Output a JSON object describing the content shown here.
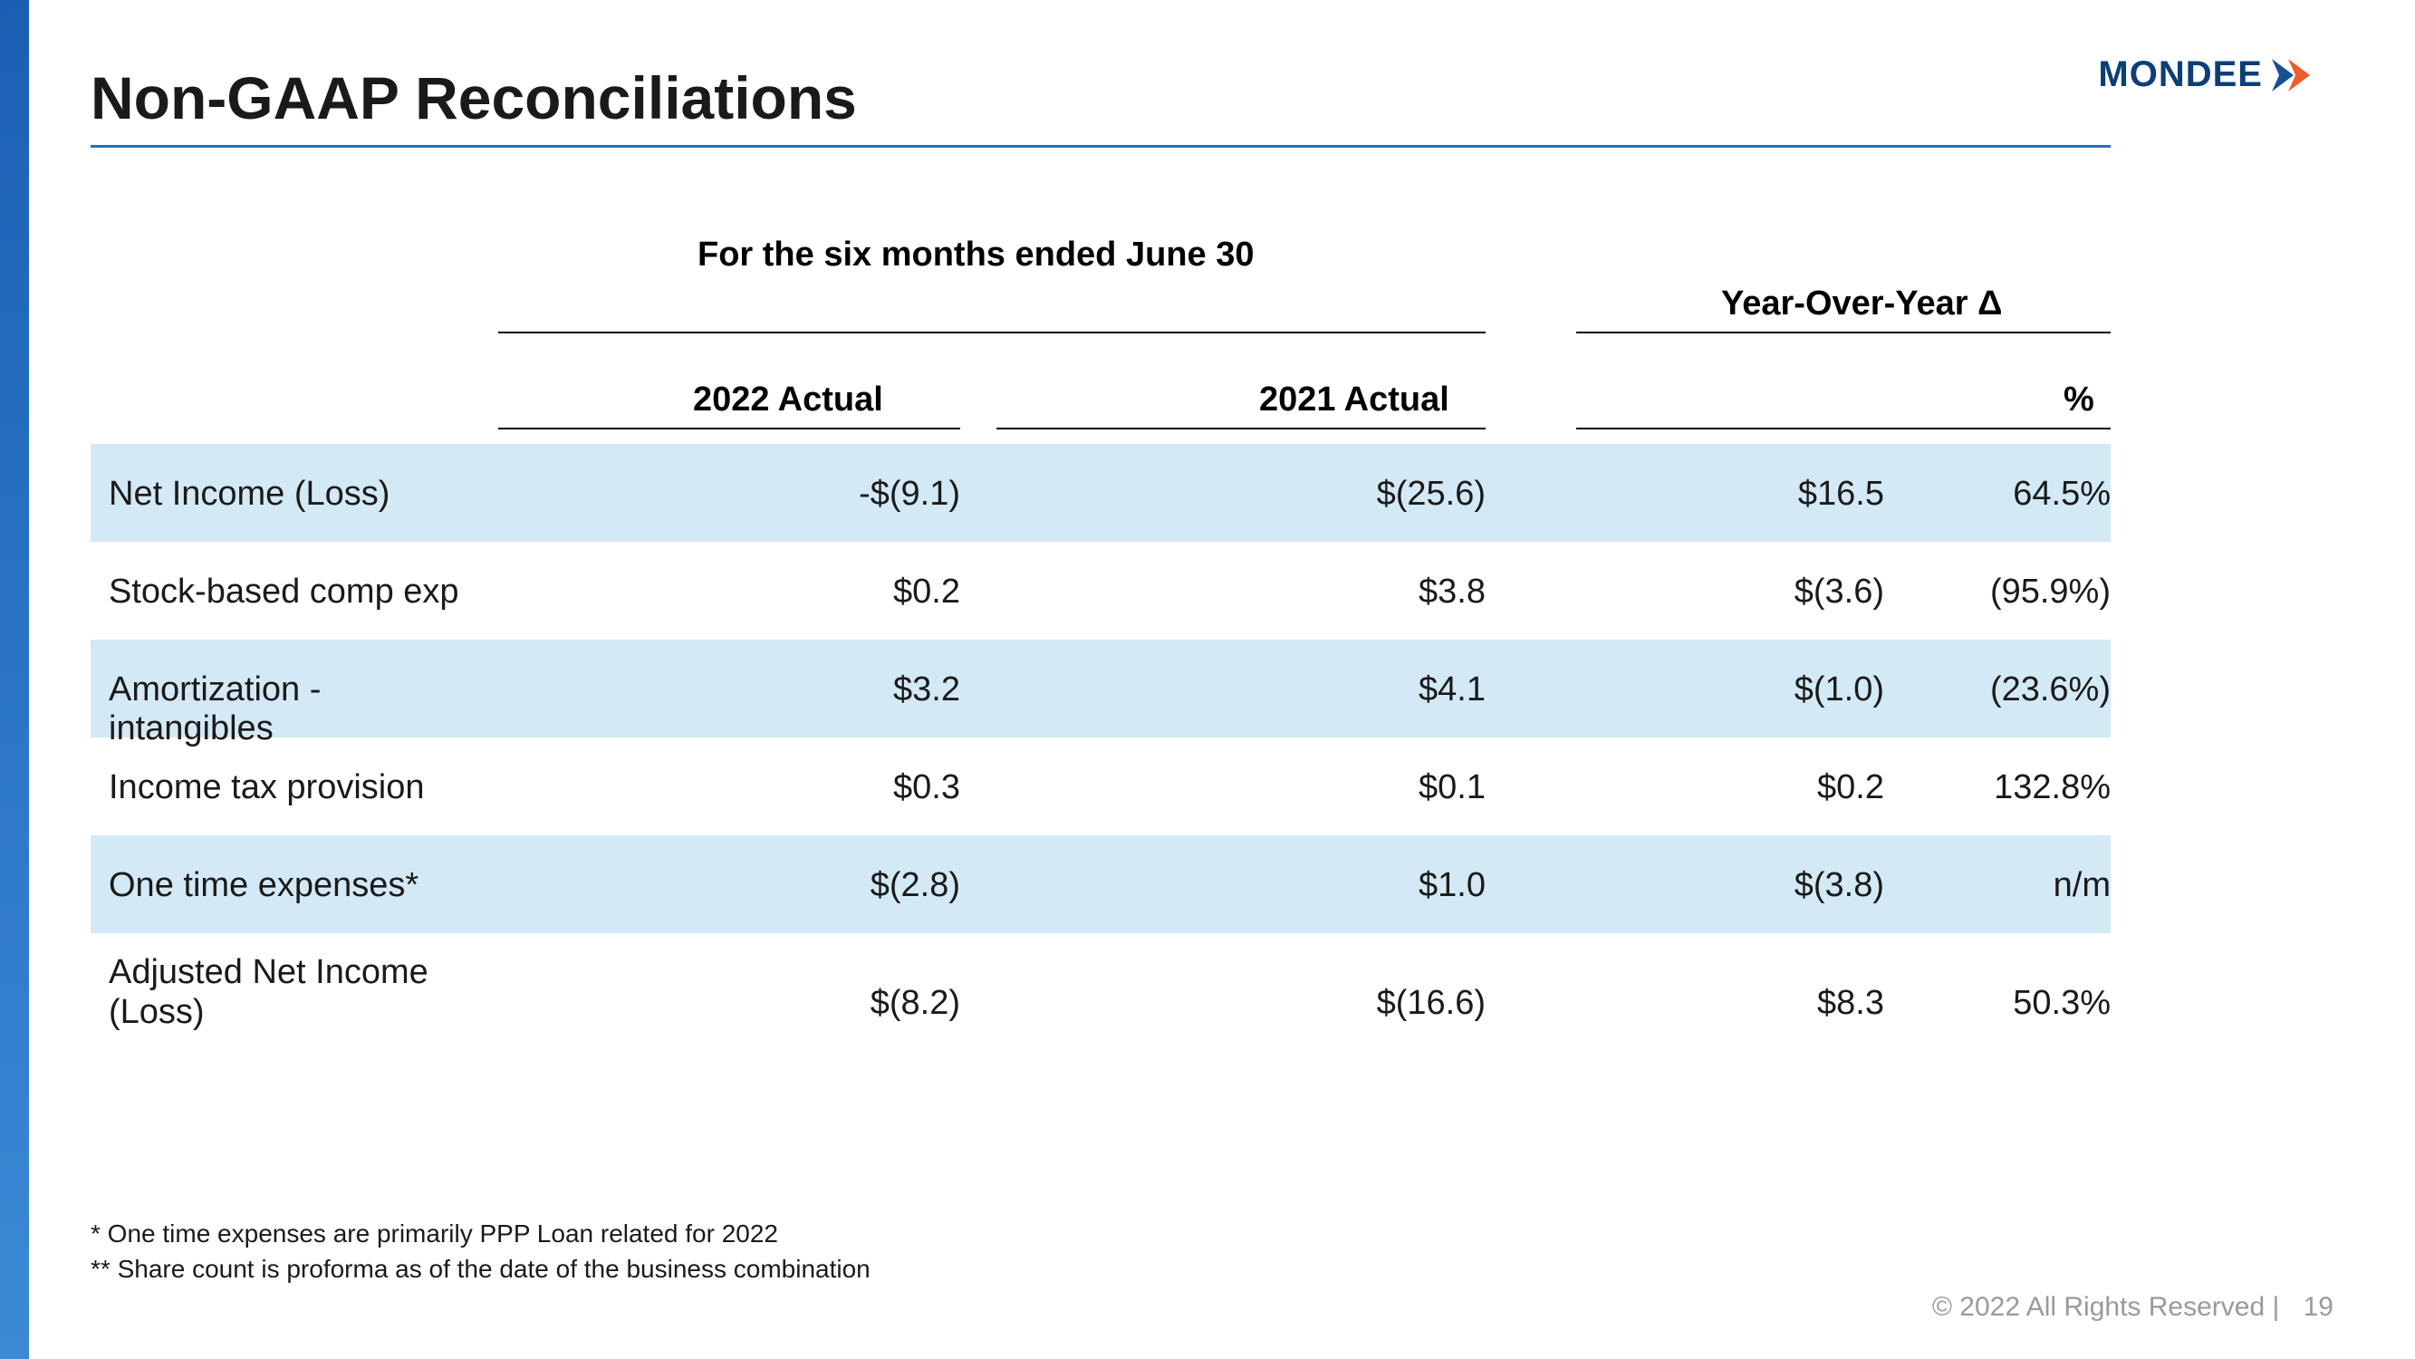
{
  "brand": {
    "name": "MONDEE",
    "text_color": "#0b3f78",
    "arrow_color_inner": "#174f91",
    "arrow_color_outer": "#f15a29"
  },
  "title": "Non-GAAP Reconciliations",
  "accent_rule_color": "#2d6fb7",
  "sidebar_gradient_top": "#1b5fb4",
  "sidebar_gradient_bottom": "#3c8ad6",
  "row_shade_color": "#d3e9f5",
  "headers": {
    "period": "For the six months ended June 30",
    "yoy": "Year-Over-Year Δ",
    "col_2022": "2022 Actual",
    "col_2021": "2021 Actual",
    "col_pct": "%"
  },
  "rows": [
    {
      "label": "Net Income (Loss)",
      "v2022": "-$(9.1)",
      "v2021": "$(25.6)",
      "delta": "$16.5",
      "pct": "64.5%",
      "shade": true,
      "tall": false
    },
    {
      "label": "Stock-based comp exp",
      "v2022": "$0.2",
      "v2021": "$3.8",
      "delta": "$(3.6)",
      "pct": "(95.9%)",
      "shade": false,
      "tall": false
    },
    {
      "label": "Amortization - intangibles",
      "v2022": "$3.2",
      "v2021": "$4.1",
      "delta": "$(1.0)",
      "pct": "(23.6%)",
      "shade": true,
      "tall": false
    },
    {
      "label": "Income tax provision",
      "v2022": "$0.3",
      "v2021": "$0.1",
      "delta": "$0.2",
      "pct": "132.8%",
      "shade": false,
      "tall": false
    },
    {
      "label": "One time expenses*",
      "v2022": "$(2.8)",
      "v2021": "$1.0",
      "delta": "$(3.8)",
      "pct": "n/m",
      "shade": true,
      "tall": false
    },
    {
      "label": "Adjusted Net Income (Loss)",
      "v2022": "$(8.2)",
      "v2021": "$(16.6)",
      "delta": "$8.3",
      "pct": "50.3%",
      "shade": false,
      "tall": true
    }
  ],
  "footnotes": [
    "* One time expenses are primarily PPP Loan related for 2022",
    "** Share count is proforma as of the date of the business combination"
  ],
  "footer": {
    "copyright": "© 2022 All Rights Reserved  |",
    "page": "19"
  }
}
